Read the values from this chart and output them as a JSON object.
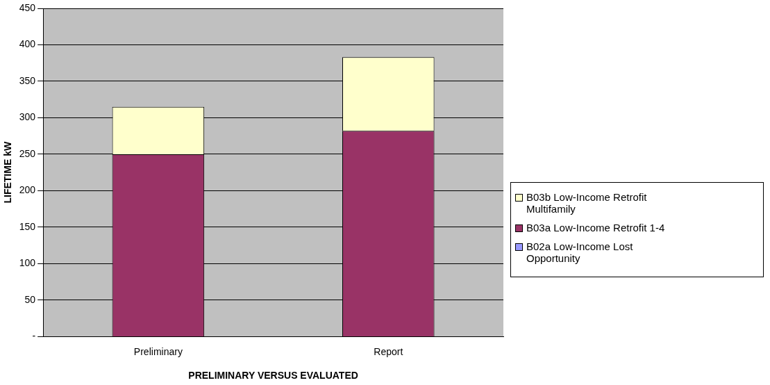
{
  "chart_data": {
    "type": "bar",
    "stacked": true,
    "xlabel": "PRELIMINARY VERSUS EVALUATED",
    "ylabel": "LIFETIME kW",
    "categories": [
      "Preliminary",
      "Report"
    ],
    "series": [
      {
        "name": "B02a Low-Income Lost Opportunity",
        "color": "#9999ff",
        "values": [
          0,
          0
        ]
      },
      {
        "name": "B03a Low-Income Retrofit 1-4",
        "color": "#993366",
        "values": [
          250,
          282
        ]
      },
      {
        "name": "B03b Low-Income Retrofit Multifamily",
        "color": "#ffffcc",
        "values": [
          65,
          101
        ]
      }
    ],
    "ylim": [
      0,
      450
    ],
    "yticks": [
      {
        "value": 0,
        "label": "-"
      },
      50,
      100,
      150,
      200,
      250,
      300,
      350,
      400,
      450
    ],
    "grid": "y",
    "legend": "right"
  }
}
